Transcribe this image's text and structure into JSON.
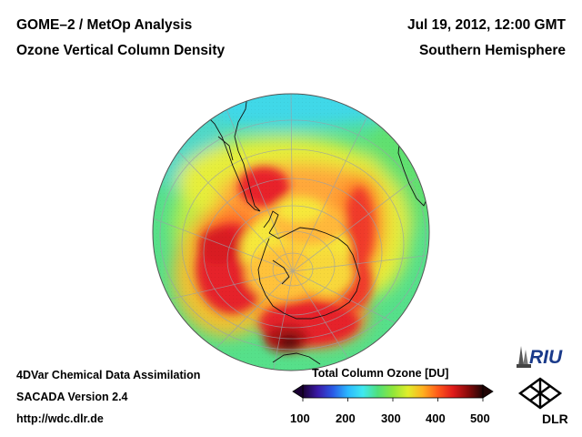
{
  "header": {
    "title_left_1": "GOME–2 / MetOp Analysis",
    "title_left_2": "Ozone Vertical Column Density",
    "title_right_1": "Jul 19, 2012, 12:00 GMT",
    "title_right_2": "Southern Hemisphere"
  },
  "footer": {
    "line1": "4DVar Chemical Data Assimilation",
    "line2": "SACADA Version 2.4",
    "line3": "http://wdc.dlr.de"
  },
  "colorbar": {
    "title": "Total Column Ozone [DU]",
    "ticks": [
      "100",
      "200",
      "300",
      "400",
      "500"
    ],
    "range": [
      100,
      500
    ],
    "colors": [
      "#1a0033",
      "#3a1aa8",
      "#2a5ae6",
      "#2bb8ff",
      "#3fe8f0",
      "#4fe07a",
      "#8fe63a",
      "#e0ee2a",
      "#ffb020",
      "#ff5a1a",
      "#e01a1a",
      "#8a0a0a",
      "#200404"
    ]
  },
  "logos": {
    "riu": "RIU",
    "dlr": "DLR"
  },
  "map": {
    "projection": "orthographic",
    "center": "South Pole",
    "variable": "total column ozone",
    "units": "DU"
  }
}
